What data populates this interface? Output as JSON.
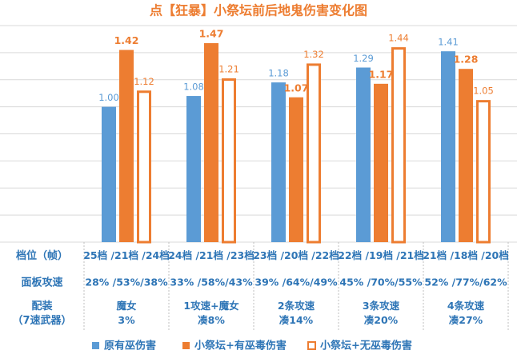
{
  "chart_data": {
    "type": "bar",
    "title": "点【狂暴】小祭坛前后地鬼伤害变化图",
    "ylim": [
      0,
      1.6
    ],
    "yticks": [
      0,
      0.2,
      0.4,
      0.6,
      0.8,
      1,
      1.2,
      1.4,
      1.6
    ],
    "grid": true,
    "series": [
      {
        "name": "原有巫伤害",
        "color": "#5b9bd5",
        "values": [
          1.0,
          1.08,
          1.18,
          1.29,
          1.41
        ],
        "value_labels": [
          "1.00",
          "1.08",
          "1.18",
          "1.29",
          "1.41"
        ]
      },
      {
        "name": "小祭坛+有巫毒伤害",
        "color": "#ed7d31",
        "values": [
          1.42,
          1.47,
          1.07,
          1.17,
          1.28
        ]
      },
      {
        "name": "小祭坛+无巫毒伤害",
        "color": "#ed7d31",
        "fill": "#ffffff",
        "values": [
          1.12,
          1.21,
          1.32,
          1.44,
          1.05
        ]
      }
    ]
  },
  "table": {
    "rows": [
      {
        "label": [
          "档位（帧）"
        ],
        "cells": [
          [
            "25档 /21档 /24档"
          ],
          [
            "24档 /21档 /23档"
          ],
          [
            "23档 /20档 /22档"
          ],
          [
            "22档 /19档 /21档"
          ],
          [
            "21档 /18档 /20档"
          ]
        ]
      },
      {
        "label": [
          "面板攻速"
        ],
        "cells": [
          [
            "28% /53%/38%"
          ],
          [
            "33% /58%/43%"
          ],
          [
            "39% /64%/49%"
          ],
          [
            "45% /70%/55%"
          ],
          [
            "52% /77%/62%"
          ]
        ]
      },
      {
        "label": [
          "配装",
          "（7速武器）"
        ],
        "cells": [
          [
            "魔女",
            "3%"
          ],
          [
            "1攻速+魔女",
            "凑8%"
          ],
          [
            "2条攻速",
            "凑14%"
          ],
          [
            "3条攻速",
            "凑20%"
          ],
          [
            "4条攻速",
            "凑27%"
          ]
        ]
      }
    ]
  }
}
